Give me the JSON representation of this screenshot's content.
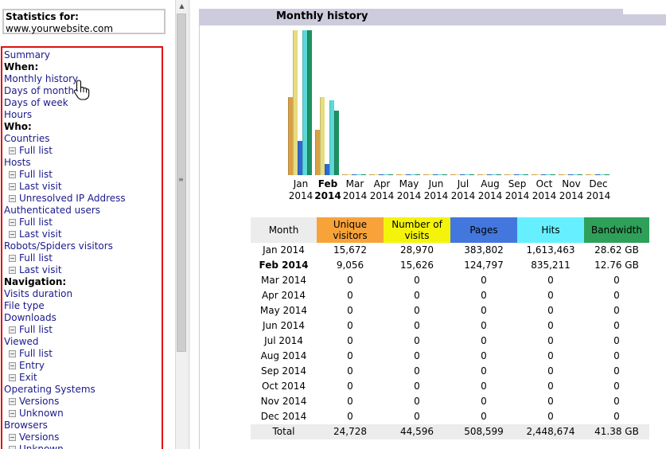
{
  "sidebar": {
    "stats_title": "Statistics for:",
    "site": "www.yourwebsite.com",
    "items": [
      {
        "label": "Summary",
        "kind": "link"
      },
      {
        "label": "When:",
        "kind": "heading"
      },
      {
        "label": "Monthly history",
        "kind": "link"
      },
      {
        "label": "Days of month",
        "kind": "link"
      },
      {
        "label": "Days of week",
        "kind": "link"
      },
      {
        "label": "Hours",
        "kind": "link"
      },
      {
        "label": "Who:",
        "kind": "heading"
      },
      {
        "label": "Countries",
        "kind": "link"
      },
      {
        "label": "Full list",
        "kind": "sub"
      },
      {
        "label": "Hosts",
        "kind": "link"
      },
      {
        "label": "Full list",
        "kind": "sub"
      },
      {
        "label": "Last visit",
        "kind": "sub"
      },
      {
        "label": "Unresolved IP Address",
        "kind": "sub"
      },
      {
        "label": "Authenticated users",
        "kind": "link"
      },
      {
        "label": "Full list",
        "kind": "sub"
      },
      {
        "label": "Last visit",
        "kind": "sub"
      },
      {
        "label": "Robots/Spiders visitors",
        "kind": "link"
      },
      {
        "label": "Full list",
        "kind": "sub"
      },
      {
        "label": "Last visit",
        "kind": "sub"
      },
      {
        "label": "Navigation:",
        "kind": "heading"
      },
      {
        "label": "Visits duration",
        "kind": "link"
      },
      {
        "label": "File type",
        "kind": "link"
      },
      {
        "label": "Downloads",
        "kind": "link"
      },
      {
        "label": "Full list",
        "kind": "sub"
      },
      {
        "label": "Viewed",
        "kind": "link"
      },
      {
        "label": "Full list",
        "kind": "sub"
      },
      {
        "label": "Entry",
        "kind": "sub"
      },
      {
        "label": "Exit",
        "kind": "sub"
      },
      {
        "label": "Operating Systems",
        "kind": "link"
      },
      {
        "label": "Versions",
        "kind": "sub"
      },
      {
        "label": "Unknown",
        "kind": "sub"
      },
      {
        "label": "Browsers",
        "kind": "link"
      },
      {
        "label": "Versions",
        "kind": "sub"
      },
      {
        "label": "Unknown",
        "kind": "sub"
      }
    ]
  },
  "main": {
    "section_title": "Monthly history",
    "chart_colors": {
      "visitors": "#d9a045",
      "visits": "#e6dc80",
      "pages": "#3068d0",
      "hits": "#5ed8d8",
      "bandwidth": "#1e9060"
    },
    "months": [
      {
        "m": "Jan",
        "y": "2014",
        "current": false
      },
      {
        "m": "Feb",
        "y": "2014",
        "current": true
      },
      {
        "m": "Mar",
        "y": "2014",
        "current": false
      },
      {
        "m": "Apr",
        "y": "2014",
        "current": false
      },
      {
        "m": "May",
        "y": "2014",
        "current": false
      },
      {
        "m": "Jun",
        "y": "2014",
        "current": false
      },
      {
        "m": "Jul",
        "y": "2014",
        "current": false
      },
      {
        "m": "Aug",
        "y": "2014",
        "current": false
      },
      {
        "m": "Sep",
        "y": "2014",
        "current": false
      },
      {
        "m": "Oct",
        "y": "2014",
        "current": false
      },
      {
        "m": "Nov",
        "y": "2014",
        "current": false
      },
      {
        "m": "Dec",
        "y": "2014",
        "current": false
      }
    ],
    "table": {
      "headers": [
        {
          "label": "Month",
          "color": "#ececec"
        },
        {
          "label": "Unique visitors",
          "color": "#f8a33a"
        },
        {
          "label": "Number of visits",
          "color": "#f4f40a"
        },
        {
          "label": "Pages",
          "color": "#4477dd"
        },
        {
          "label": "Hits",
          "color": "#66f0ff"
        },
        {
          "label": "Bandwidth",
          "color": "#2ea05a"
        }
      ],
      "rows": [
        {
          "month": "Jan 2014",
          "visitors": "15,672",
          "visits": "28,970",
          "pages": "383,802",
          "hits": "1,613,463",
          "bandwidth": "28.62 GB",
          "current": false
        },
        {
          "month": "Feb 2014",
          "visitors": "9,056",
          "visits": "15,626",
          "pages": "124,797",
          "hits": "835,211",
          "bandwidth": "12.76 GB",
          "current": true
        },
        {
          "month": "Mar 2014",
          "visitors": "0",
          "visits": "0",
          "pages": "0",
          "hits": "0",
          "bandwidth": "0",
          "current": false
        },
        {
          "month": "Apr 2014",
          "visitors": "0",
          "visits": "0",
          "pages": "0",
          "hits": "0",
          "bandwidth": "0",
          "current": false
        },
        {
          "month": "May 2014",
          "visitors": "0",
          "visits": "0",
          "pages": "0",
          "hits": "0",
          "bandwidth": "0",
          "current": false
        },
        {
          "month": "Jun 2014",
          "visitors": "0",
          "visits": "0",
          "pages": "0",
          "hits": "0",
          "bandwidth": "0",
          "current": false
        },
        {
          "month": "Jul 2014",
          "visitors": "0",
          "visits": "0",
          "pages": "0",
          "hits": "0",
          "bandwidth": "0",
          "current": false
        },
        {
          "month": "Aug 2014",
          "visitors": "0",
          "visits": "0",
          "pages": "0",
          "hits": "0",
          "bandwidth": "0",
          "current": false
        },
        {
          "month": "Sep 2014",
          "visitors": "0",
          "visits": "0",
          "pages": "0",
          "hits": "0",
          "bandwidth": "0",
          "current": false
        },
        {
          "month": "Oct 2014",
          "visitors": "0",
          "visits": "0",
          "pages": "0",
          "hits": "0",
          "bandwidth": "0",
          "current": false
        },
        {
          "month": "Nov 2014",
          "visitors": "0",
          "visits": "0",
          "pages": "0",
          "hits": "0",
          "bandwidth": "0",
          "current": false
        },
        {
          "month": "Dec 2014",
          "visitors": "0",
          "visits": "0",
          "pages": "0",
          "hits": "0",
          "bandwidth": "0",
          "current": false
        }
      ],
      "total": {
        "month": "Total",
        "visitors": "24,728",
        "visits": "44,596",
        "pages": "508,599",
        "hits": "2,448,674",
        "bandwidth": "41.38 GB"
      }
    }
  },
  "chart_data": {
    "type": "bar",
    "categories": [
      "Jan 2014",
      "Feb 2014",
      "Mar 2014",
      "Apr 2014",
      "May 2014",
      "Jun 2014",
      "Jul 2014",
      "Aug 2014",
      "Sep 2014",
      "Oct 2014",
      "Nov 2014",
      "Dec 2014"
    ],
    "series": [
      {
        "name": "Unique visitors",
        "values": [
          15672,
          9056,
          0,
          0,
          0,
          0,
          0,
          0,
          0,
          0,
          0,
          0
        ]
      },
      {
        "name": "Number of visits",
        "values": [
          28970,
          15626,
          0,
          0,
          0,
          0,
          0,
          0,
          0,
          0,
          0,
          0
        ]
      },
      {
        "name": "Pages",
        "values": [
          383802,
          124797,
          0,
          0,
          0,
          0,
          0,
          0,
          0,
          0,
          0,
          0
        ]
      },
      {
        "name": "Hits",
        "values": [
          1613463,
          835211,
          0,
          0,
          0,
          0,
          0,
          0,
          0,
          0,
          0,
          0
        ]
      },
      {
        "name": "Bandwidth",
        "values": [
          28.62,
          12.76,
          0,
          0,
          0,
          0,
          0,
          0,
          0,
          0,
          0,
          0
        ]
      }
    ],
    "scale_groups": [
      [
        "Unique visitors",
        "Number of visits"
      ],
      [
        "Pages",
        "Hits"
      ],
      [
        "Bandwidth"
      ]
    ]
  }
}
